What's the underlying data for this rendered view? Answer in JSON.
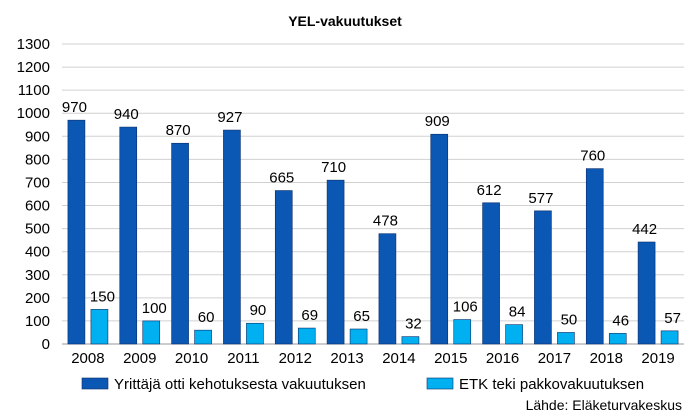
{
  "chart_data": {
    "type": "bar",
    "title": "YEL-vakuutukset",
    "categories": [
      "2008",
      "2009",
      "2010",
      "2011",
      "2012",
      "2013",
      "2014",
      "2015",
      "2016",
      "2017",
      "2018",
      "2019"
    ],
    "series": [
      {
        "name": "Yrittäjä otti kehotuksesta vakuutuksen",
        "color": "#0a57b4",
        "values": [
          970,
          940,
          870,
          927,
          665,
          710,
          478,
          909,
          612,
          577,
          760,
          442
        ]
      },
      {
        "name": "ETK teki pakkovakuutuksen",
        "color": "#00b0f0",
        "values": [
          150,
          100,
          60,
          90,
          69,
          65,
          32,
          106,
          84,
          50,
          46,
          57
        ]
      }
    ],
    "ylim": [
      0,
      1300
    ],
    "yticks": [
      0,
      100,
      200,
      300,
      400,
      500,
      600,
      700,
      800,
      900,
      1000,
      1100,
      1200,
      1300
    ],
    "grid": true,
    "legend_position": "bottom",
    "source": "Lähde: Eläketurvakeskus"
  }
}
